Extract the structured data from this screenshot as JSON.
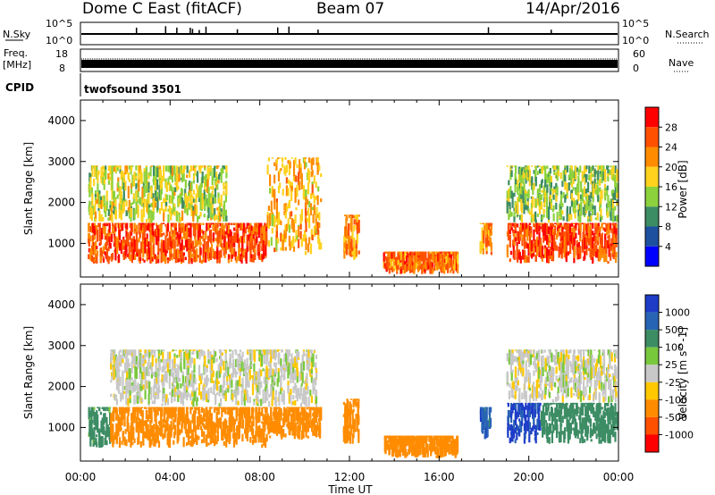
{
  "header": {
    "title": "Dome C East (fitACF)",
    "beam": "Beam 07",
    "date": "14/Apr/2016"
  },
  "strip": {
    "nsky_label": "N.Sky",
    "nsky_ticks": [
      "10^5",
      "10^0"
    ],
    "nsearch_label": "N.Search",
    "nsearch_ticks": [
      "10^5",
      "10^0"
    ],
    "freq_label": "Freq.",
    "freq_unit": "[MHz]",
    "freq_ticks": [
      "18",
      "8"
    ],
    "nave_label": "Nave",
    "nave_ticks": [
      "60",
      "0"
    ],
    "cpid_label": "CPID",
    "cpid_value": "twofsound 3501"
  },
  "chart_data": [
    {
      "type": "heatmap",
      "name": "power-panel",
      "ylabel": "Slant Range [km]",
      "xlabel": "",
      "xlim": [
        "00:00",
        "24:00"
      ],
      "ylim": [
        180,
        4500
      ],
      "yticks": [
        1000,
        2000,
        3000,
        4000
      ],
      "colorbar": {
        "label": "Power [dB]",
        "ticks": [
          "28",
          "24",
          "20",
          "16",
          "12",
          "8",
          "4"
        ],
        "colors": [
          "#ff0000",
          "#ff5000",
          "#ff8c00",
          "#ffd21e",
          "#8cd23c",
          "#3c8c64",
          "#1e50a0",
          "#0000ff"
        ]
      },
      "regions": [
        {
          "t0": 0.3,
          "t1": 8.3,
          "r0": 500,
          "r1": 1500,
          "value": 26
        },
        {
          "t0": 0.3,
          "t1": 6.5,
          "r0": 1500,
          "r1": 2900,
          "value": 16
        },
        {
          "t0": 8.3,
          "t1": 10.7,
          "r0": 700,
          "r1": 3100,
          "value": 20
        },
        {
          "t0": 11.7,
          "t1": 12.4,
          "r0": 600,
          "r1": 1700,
          "value": 22
        },
        {
          "t0": 13.5,
          "t1": 16.8,
          "r0": 250,
          "r1": 800,
          "value": 24
        },
        {
          "t0": 17.8,
          "t1": 18.3,
          "r0": 700,
          "r1": 1500,
          "value": 22
        },
        {
          "t0": 19.0,
          "t1": 23.9,
          "r0": 500,
          "r1": 1500,
          "value": 27
        },
        {
          "t0": 19.0,
          "t1": 23.9,
          "r0": 1500,
          "r1": 2900,
          "value": 14
        }
      ]
    },
    {
      "type": "heatmap",
      "name": "velocity-panel",
      "ylabel": "Slant Range [km]",
      "xlabel": "Time UT",
      "xlim": [
        "00:00",
        "24:00"
      ],
      "ylim": [
        180,
        4500
      ],
      "yticks": [
        1000,
        2000,
        3000,
        4000
      ],
      "xticks": [
        "00:00",
        "04:00",
        "08:00",
        "12:00",
        "16:00",
        "20:00",
        "00:00"
      ],
      "colorbar": {
        "label": "Velocity [m s^-1]",
        "ticks": [
          "1000",
          "500",
          "100",
          "25",
          "-25",
          "-100",
          "-500",
          "-1000"
        ],
        "colors": [
          "#1e3cc8",
          "#2864b4",
          "#3c8c64",
          "#78c83c",
          "#c8c8c8",
          "#ffc800",
          "#ff8c00",
          "#ff5000",
          "#ff0000"
        ]
      },
      "regions": [
        {
          "t0": 0.3,
          "t1": 1.3,
          "r0": 500,
          "r1": 1500,
          "value": 150
        },
        {
          "t0": 1.3,
          "t1": 8.3,
          "r0": 500,
          "r1": 1500,
          "value": -300
        },
        {
          "t0": 1.3,
          "t1": 10.5,
          "r0": 1500,
          "r1": 2900,
          "value": 0
        },
        {
          "t0": 8.3,
          "t1": 10.7,
          "r0": 700,
          "r1": 1500,
          "value": -300
        },
        {
          "t0": 11.7,
          "t1": 12.4,
          "r0": 600,
          "r1": 1700,
          "value": -300
        },
        {
          "t0": 13.5,
          "t1": 16.8,
          "r0": 250,
          "r1": 800,
          "value": -200
        },
        {
          "t0": 17.8,
          "t1": 18.3,
          "r0": 700,
          "r1": 1500,
          "value": 800
        },
        {
          "t0": 19.0,
          "t1": 20.5,
          "r0": 600,
          "r1": 1600,
          "value": 1200
        },
        {
          "t0": 20.5,
          "t1": 23.9,
          "r0": 600,
          "r1": 1600,
          "value": 200
        },
        {
          "t0": 19.0,
          "t1": 23.9,
          "r0": 1600,
          "r1": 2900,
          "value": 0
        }
      ]
    }
  ]
}
